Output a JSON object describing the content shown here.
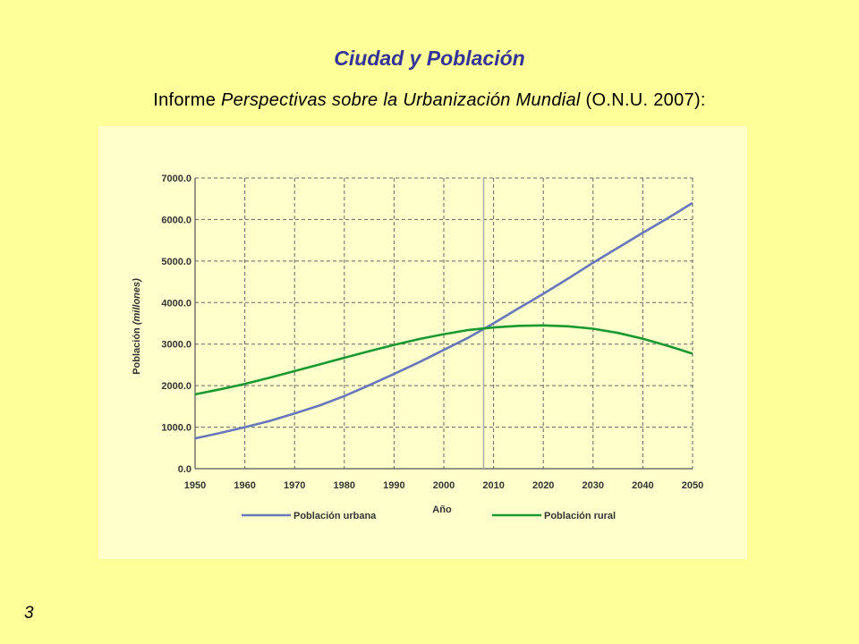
{
  "slide": {
    "title": "Ciudad y Población",
    "subtitle_prefix": "Informe ",
    "subtitle_italic": "Perspectivas sobre la Urbanización Mundial",
    "subtitle_suffix": " (O.N.U. 2007):",
    "page_number": "3"
  },
  "chart_data": {
    "type": "line",
    "xlabel": "Año",
    "ylabel_main": "Población ",
    "ylabel_italic": "(millones)",
    "xlim": [
      1950,
      2050
    ],
    "ylim": [
      0,
      7000
    ],
    "x_ticks": [
      "1950",
      "1960",
      "1970",
      "1980",
      "1990",
      "2000",
      "2010",
      "2020",
      "2030",
      "2040",
      "2050"
    ],
    "y_ticks": [
      "0.0",
      "1000.0",
      "2000.0",
      "3000.0",
      "4000.0",
      "5000.0",
      "6000.0",
      "7000.0"
    ],
    "grid": true,
    "vertical_marker_x": 2008,
    "legend_position": "bottom",
    "x": [
      1950,
      1955,
      1960,
      1965,
      1970,
      1975,
      1980,
      1985,
      1990,
      1995,
      2000,
      2005,
      2010,
      2015,
      2020,
      2025,
      2030,
      2035,
      2040,
      2045,
      2050
    ],
    "series": [
      {
        "name": "Población urbana",
        "color": "#6677bb",
        "values": [
          730,
          860,
          1000,
          1150,
          1330,
          1520,
          1750,
          2010,
          2280,
          2560,
          2860,
          3160,
          3500,
          3860,
          4210,
          4580,
          4960,
          5320,
          5680,
          6030,
          6400
        ]
      },
      {
        "name": "Población rural",
        "color": "#1a9932",
        "values": [
          1790,
          1910,
          2040,
          2190,
          2350,
          2510,
          2670,
          2830,
          2980,
          3120,
          3240,
          3340,
          3400,
          3440,
          3450,
          3430,
          3370,
          3270,
          3130,
          2960,
          2770
        ]
      }
    ]
  }
}
